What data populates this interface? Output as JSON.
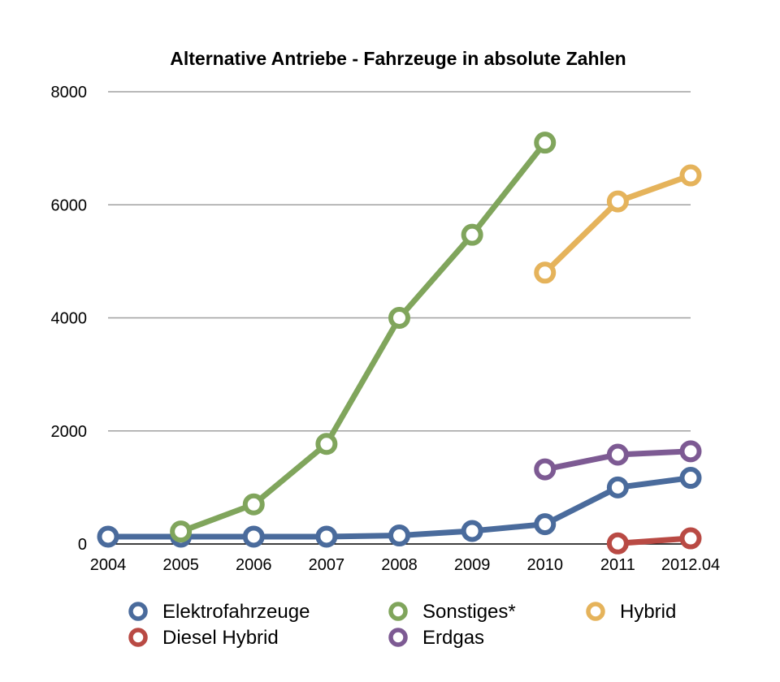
{
  "chart_data": {
    "type": "line",
    "title": "Alternative Antriebe - Fahrzeuge in absolute Zahlen",
    "xlabel": "",
    "ylabel": "",
    "categories": [
      "2004",
      "2005",
      "2006",
      "2007",
      "2008",
      "2009",
      "2010",
      "2011",
      "2012.04"
    ],
    "ylim": [
      0,
      8000
    ],
    "yticks": [
      0,
      2000,
      4000,
      6000,
      8000
    ],
    "ytick_labels": [
      "0",
      "2000",
      "4000",
      "6000",
      "8000"
    ],
    "grid": true,
    "legend_position": "bottom",
    "series": [
      {
        "name": "Elektrofahrzeuge",
        "color": "#4a6b9c",
        "values": [
          130,
          130,
          130,
          130,
          150,
          230,
          350,
          1000,
          1170
        ]
      },
      {
        "name": "Sonstiges*",
        "color": "#80a55c",
        "values": [
          null,
          220,
          700,
          1770,
          4000,
          5470,
          7100,
          null,
          null
        ]
      },
      {
        "name": "Hybrid",
        "color": "#e5b35b",
        "values": [
          null,
          null,
          null,
          null,
          null,
          null,
          4800,
          6060,
          6520
        ]
      },
      {
        "name": "Diesel Hybrid",
        "color": "#b94a44",
        "values": [
          null,
          null,
          null,
          null,
          null,
          null,
          null,
          10,
          100
        ]
      },
      {
        "name": "Erdgas",
        "color": "#7d5a93",
        "values": [
          null,
          null,
          null,
          null,
          null,
          null,
          1320,
          1580,
          1640
        ]
      }
    ]
  }
}
